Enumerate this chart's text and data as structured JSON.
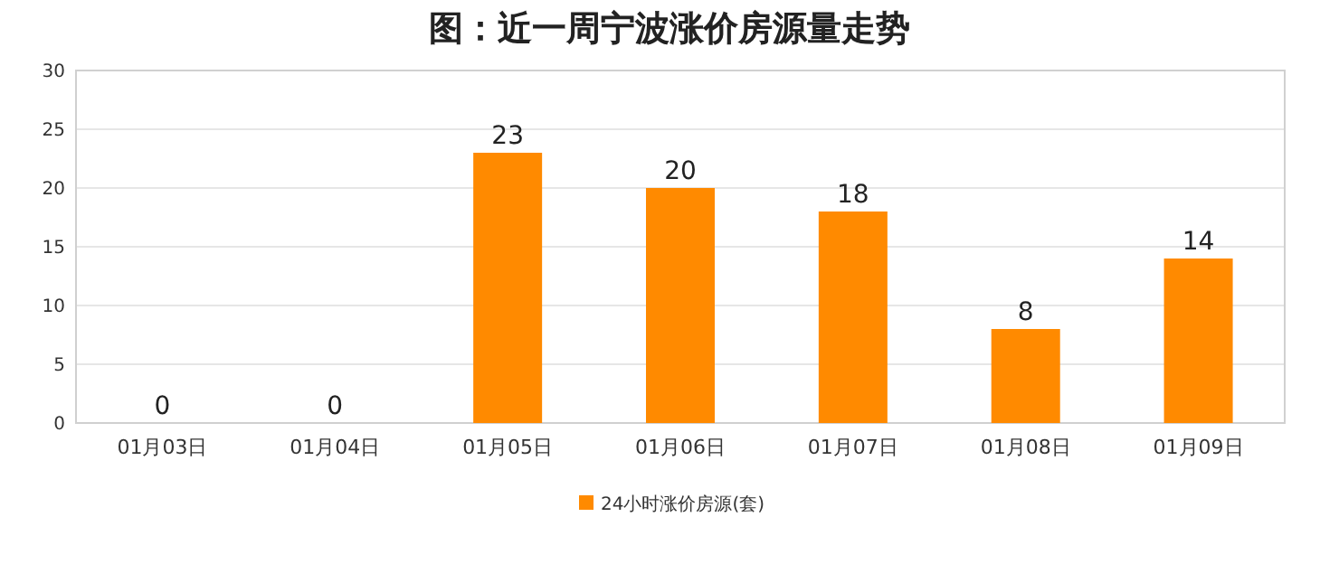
{
  "chart_data": {
    "type": "bar",
    "title": "图：近一周宁波涨价房源量走势",
    "categories": [
      "01月03日",
      "01月04日",
      "01月05日",
      "01月06日",
      "01月07日",
      "01月08日",
      "01月09日"
    ],
    "series": [
      {
        "name": "24小时涨价房源(套)",
        "color": "#ff8a00",
        "values": [
          0,
          0,
          23,
          20,
          18,
          8,
          14
        ]
      }
    ],
    "ylim": [
      0,
      30
    ],
    "yticks": [
      0,
      5,
      10,
      15,
      20,
      25,
      30
    ],
    "grid": "y",
    "legend": "bottom",
    "data_labels": true
  }
}
